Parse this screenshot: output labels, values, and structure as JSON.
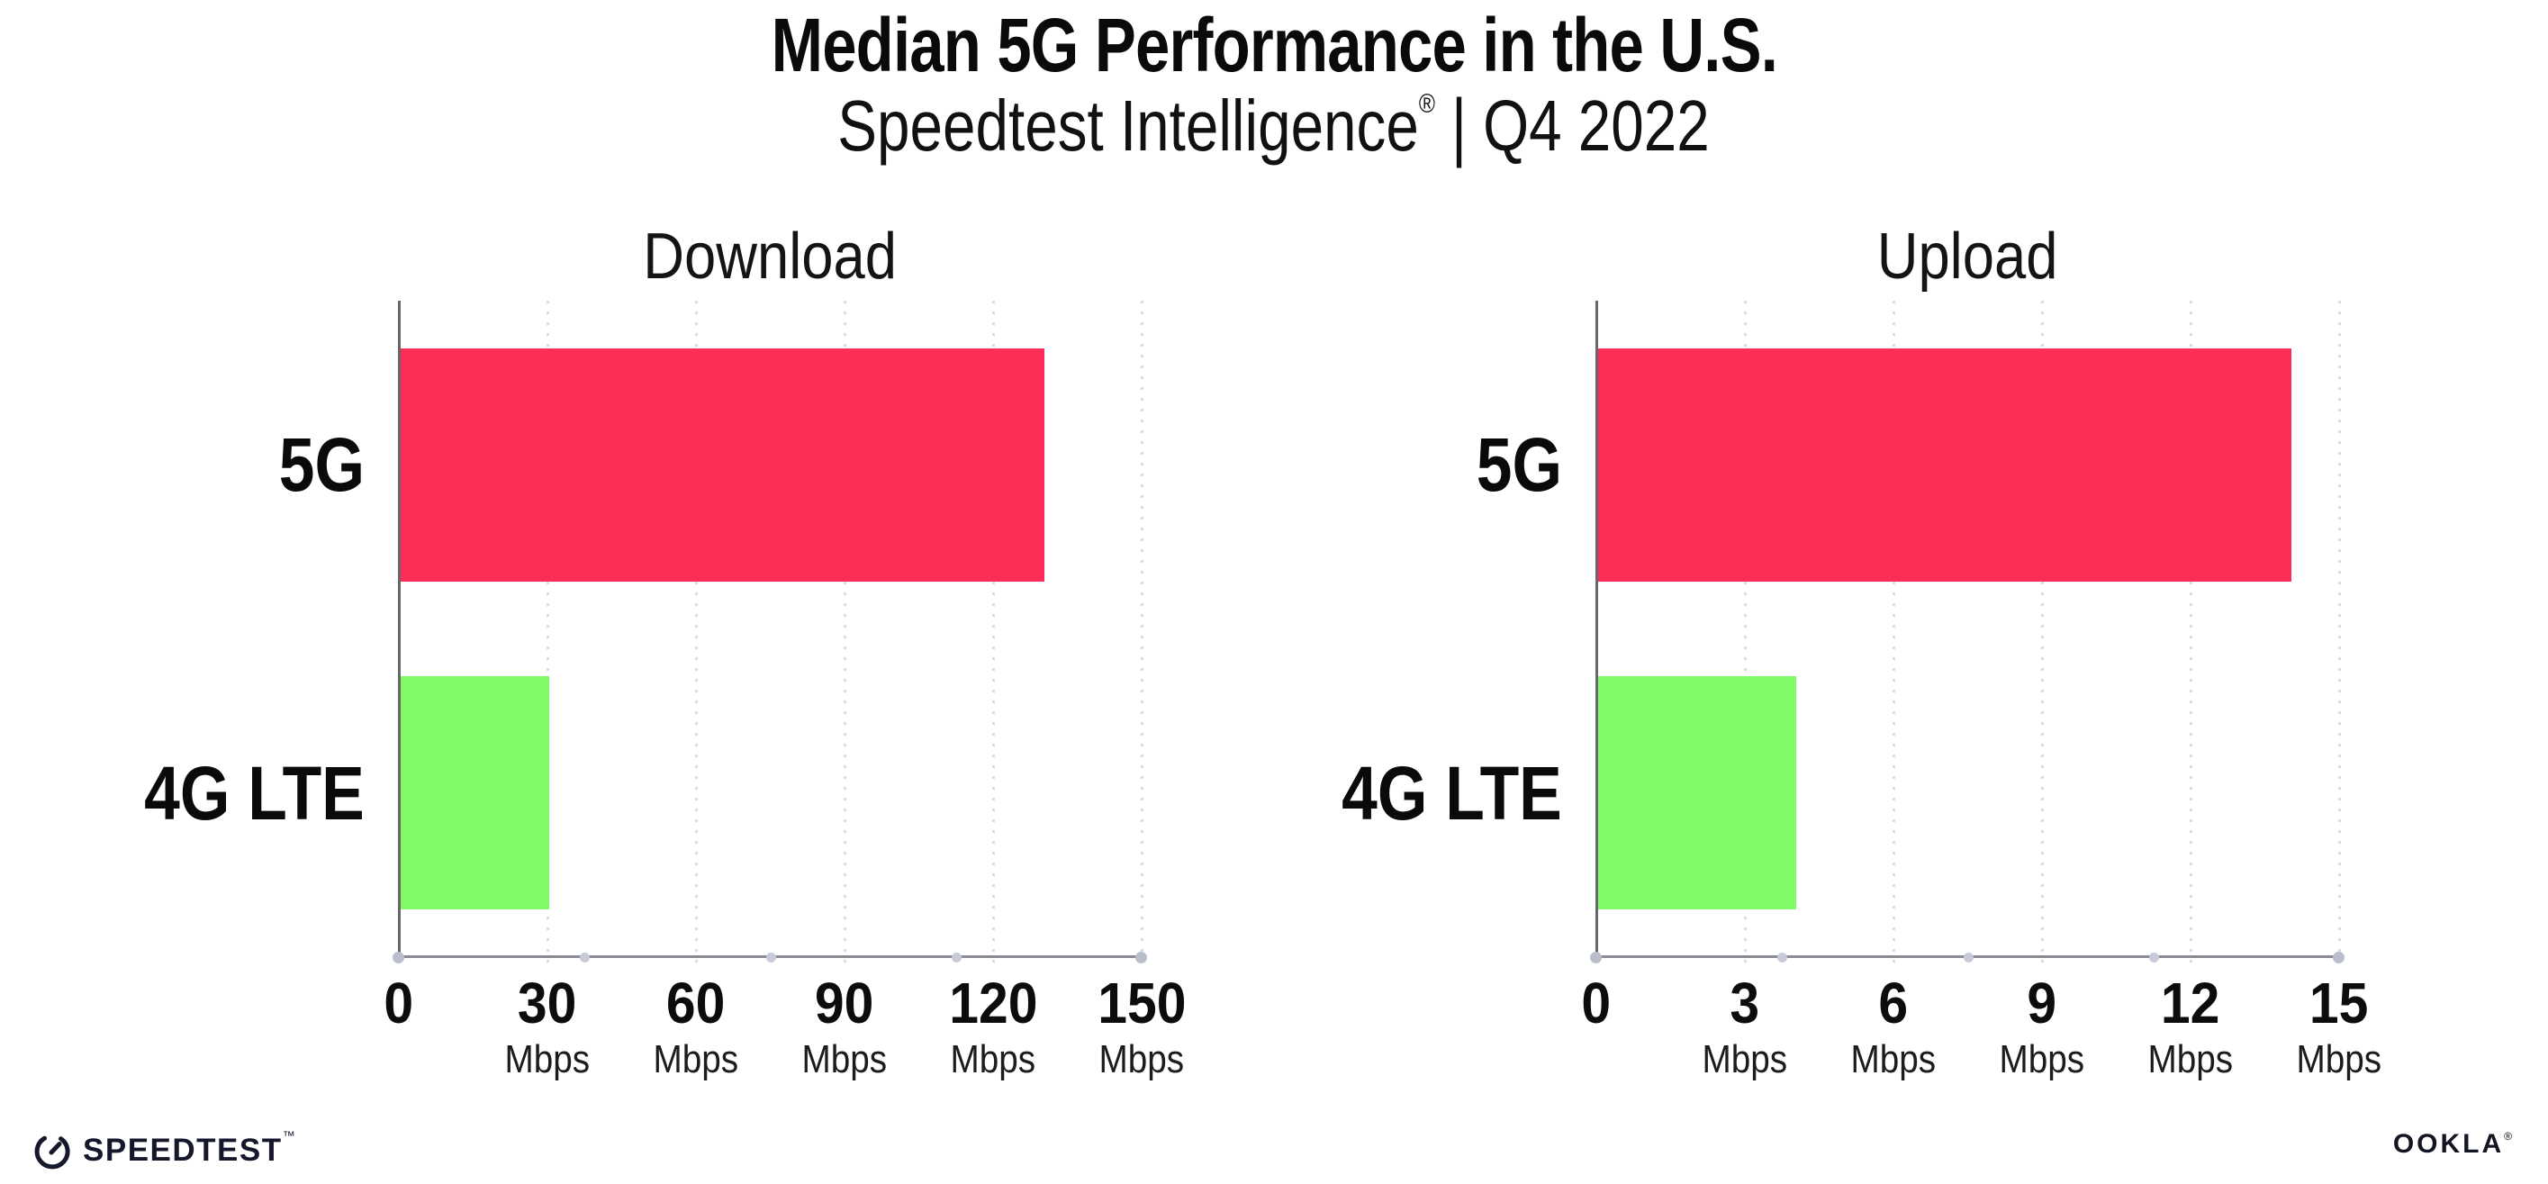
{
  "header": {
    "title": "Median 5G Performance in the U.S.",
    "subtitle": {
      "brand": "Speedtest Intelligence",
      "registered": "®",
      "separator": "|",
      "period": "Q4 2022"
    }
  },
  "chart_data": [
    {
      "type": "bar",
      "orientation": "horizontal",
      "title": "Download",
      "categories": [
        "5G",
        "4G LTE"
      ],
      "values": [
        130,
        30
      ],
      "unit": "Mbps",
      "xlim": [
        0,
        150
      ],
      "xticks": [
        0,
        30,
        60,
        90,
        120,
        150
      ],
      "tick_labels": [
        {
          "num": "0",
          "unit": ""
        },
        {
          "num": "30",
          "unit": "Mbps"
        },
        {
          "num": "60",
          "unit": "Mbps"
        },
        {
          "num": "90",
          "unit": "Mbps"
        },
        {
          "num": "120",
          "unit": "Mbps"
        },
        {
          "num": "150",
          "unit": "Mbps"
        }
      ],
      "bar_colors": [
        "#fc2e57",
        "#80fb66"
      ],
      "gridlines": "dotted-vertical",
      "legend": "none"
    },
    {
      "type": "bar",
      "orientation": "horizontal",
      "title": "Upload",
      "categories": [
        "5G",
        "4G LTE"
      ],
      "values": [
        14,
        4
      ],
      "unit": "Mbps",
      "xlim": [
        0,
        15
      ],
      "xticks": [
        0,
        3,
        6,
        9,
        12,
        15
      ],
      "tick_labels": [
        {
          "num": "0",
          "unit": ""
        },
        {
          "num": "3",
          "unit": "Mbps"
        },
        {
          "num": "6",
          "unit": "Mbps"
        },
        {
          "num": "9",
          "unit": "Mbps"
        },
        {
          "num": "12",
          "unit": "Mbps"
        },
        {
          "num": "15",
          "unit": "Mbps"
        }
      ],
      "bar_colors": [
        "#fc2e57",
        "#80fb66"
      ],
      "gridlines": "dotted-vertical",
      "legend": "none"
    }
  ],
  "footer": {
    "speedtest_label": "SPEEDTEST",
    "speedtest_tm": "™",
    "ookla_label": "OOKLA",
    "ookla_reg": "®"
  },
  "colors": {
    "bar_5g": "#fc2e57",
    "bar_4g_lte": "#80fb66",
    "axis_line": "#8a8c92",
    "grid_dot": "#d8dbe8",
    "text": "#0d0d0d"
  }
}
